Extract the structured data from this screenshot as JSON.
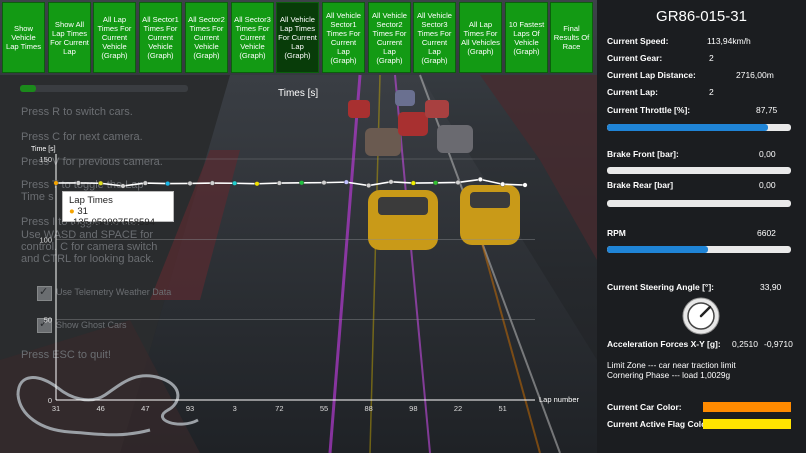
{
  "colors": {
    "button_green": "#139a14",
    "button_active": "#083c09",
    "bar_fill": "#1f84d6",
    "car_color": "#ff8a00",
    "flag_color": "#ffe400"
  },
  "toolbar": {
    "buttons": [
      "Show Vehicle Lap Times",
      "Show All Lap Times For Current Lap",
      "All Lap Times For Current Vehicle (Graph)",
      "All Sector1 Times For Current Vehicle (Graph)",
      "All Sector2 Times For Current Vehicle (Graph)",
      "All Sector3 Times For Current Vehicle (Graph)",
      "All Vehicle Lap Times For Current Lap (Graph)",
      "All Vehicle Sector1 Times For Current Lap (Graph)",
      "All Vehicle Sector2 Times For Current Lap (Graph)",
      "All Vehicle Sector3 Times For Current Lap (Graph)",
      "All Lap Times For All Vehicles (Graph)",
      "10 Fastest Laps Of Vehicle (Graph)",
      "Final Results Of Race"
    ]
  },
  "overlay": {
    "lines": [
      "Press R to switch cars.",
      "Press C for next camera.",
      "Press V for previous camera.",
      "Press T to toggle the Lap",
      "Time s",
      "Press I to toggle the car.",
      "Use WASD and SPACE for",
      "control. C for camera switch",
      "and CTRL for looking back."
    ],
    "checkbox_weather": "Use Telemetry Weather Data",
    "checkbox_ghost": "Show Ghost Cars",
    "quit_hint": "Press ESC to quit!"
  },
  "chart_data": {
    "type": "line",
    "title": "Times [s]",
    "ylabel": "Time [s]",
    "xlabel": "Lap number",
    "ylim": [
      0,
      150
    ],
    "yticks": [
      0,
      50,
      100,
      150
    ],
    "x": [
      "31",
      "",
      "46",
      "",
      "47",
      "",
      "93",
      "",
      "3",
      "",
      "72",
      "",
      "55",
      "",
      "88",
      "",
      "98",
      "",
      "22",
      "",
      "51",
      ""
    ],
    "x_tick_labels": [
      "31",
      "46",
      "47",
      "93",
      "3",
      "72",
      "55",
      "88",
      "98",
      "22",
      "51"
    ],
    "series": [
      {
        "values": [
          135.06,
          135.1,
          134.9,
          133.2,
          135.0,
          134.7,
          134.8,
          135.0,
          134.9,
          134.6,
          135.0,
          135.2,
          135.3,
          135.6,
          133.5,
          135.8,
          135.0,
          135.2,
          135.4,
          137.3,
          134.3,
          133.8
        ]
      }
    ],
    "point_colors": [
      "#f4a300",
      "#d0d0d0",
      "#e0e020",
      "#d0d0d0",
      "#d0d0d0",
      "#18b6e8",
      "#d0d0d0",
      "#d0d0d0",
      "#20d0d0",
      "#f0e000",
      "#d0d0d0",
      "#20c040",
      "#d0d0d0",
      "#c0c0ff",
      "#d0d0d0",
      "#d0d0d0",
      "#f0f000",
      "#30c030",
      "#d0d0d0",
      "#ffffff",
      "#ffffff",
      "#ffffff"
    ],
    "tooltip": {
      "title": "Lap Times",
      "label": "31",
      "value": "135,059997558594"
    },
    "grid": true,
    "legend": "none"
  },
  "panel": {
    "car_name": "GR86-015-31",
    "speed_label": "Current Speed:",
    "speed_value": "113,94km/h",
    "gear_label": "Current Gear:",
    "gear_value": "2",
    "lapdist_label": "Current Lap Distance:",
    "lapdist_value": "2716,00m",
    "lap_label": "Current Lap:",
    "lap_value": "2",
    "throttle_label": "Current Throttle [%]:",
    "throttle_value": "87,75",
    "throttle_fraction": 0.8775,
    "brake_front_label": "Brake Front [bar]:",
    "brake_front_value": "0,00",
    "brake_front_fraction": 0.0,
    "brake_rear_label": "Brake Rear [bar]",
    "brake_rear_value": "0,00",
    "brake_rear_fraction": 0.0,
    "rpm_label": "RPM",
    "rpm_value": "6602",
    "rpm_fraction": 0.55,
    "steering_label": "Current Steering Angle [°]:",
    "steering_value": "33,90",
    "accel_label": "Acceleration Forces X-Y [g]:",
    "accel_x": "0,2510",
    "accel_y": "-0,9710",
    "limit_zone": "Limit Zone --- car near traction limit",
    "cornering_phase": "Cornering Phase --- load 1,0029g",
    "car_color_label": "Current Car Color:",
    "flag_color_label": "Current Active Flag Color:"
  }
}
